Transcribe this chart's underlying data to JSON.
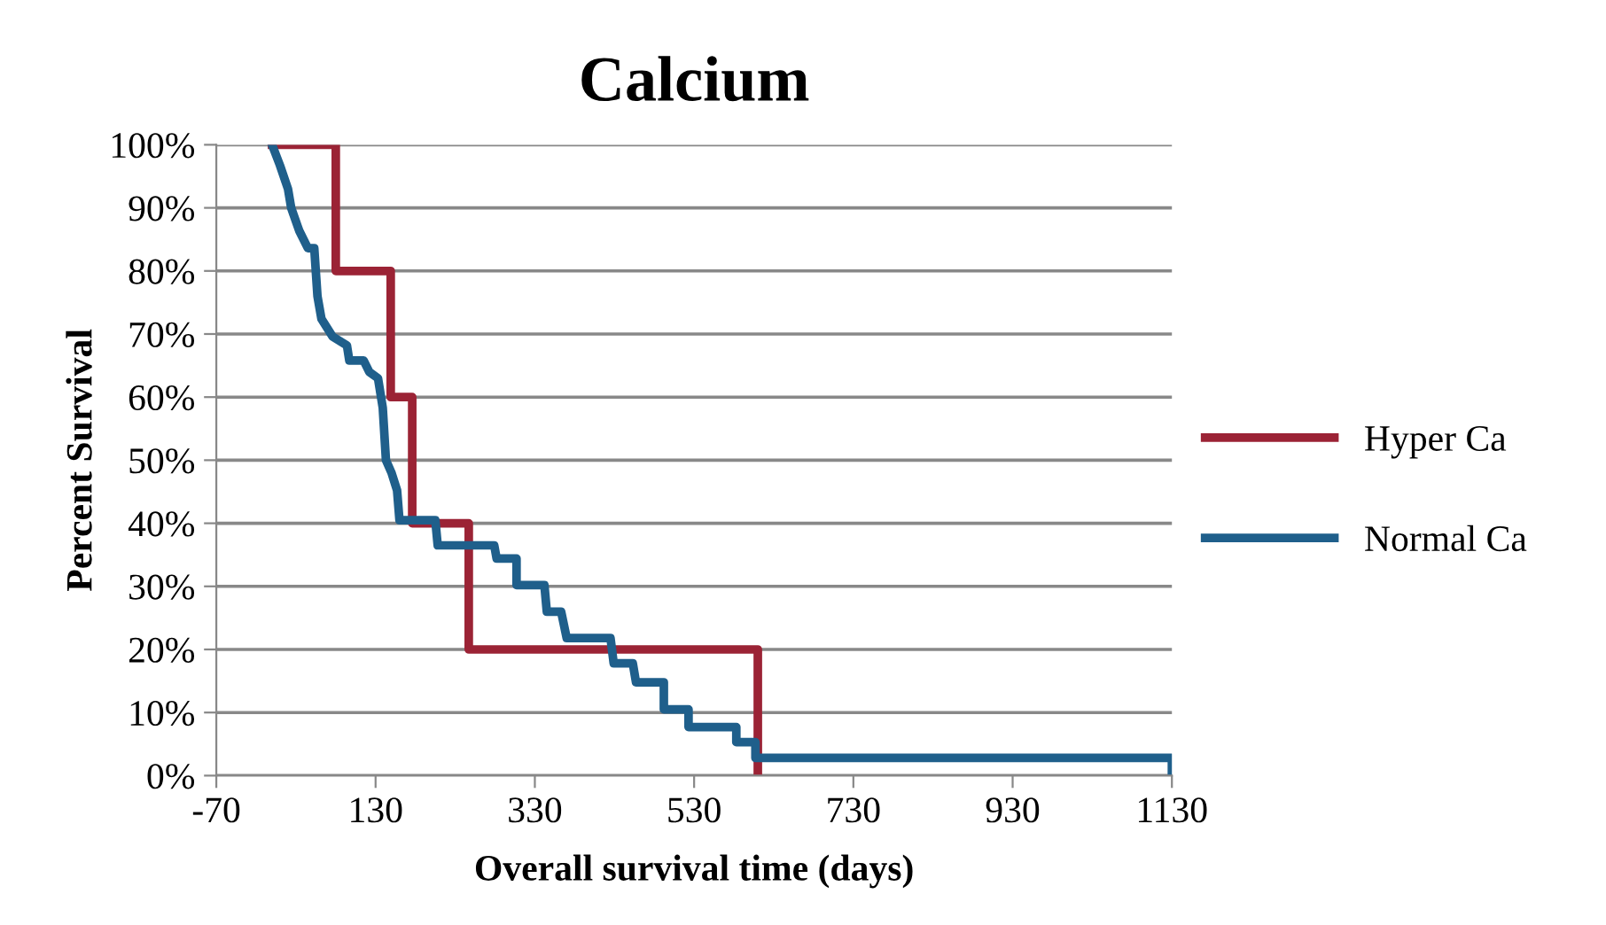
{
  "chart_data": {
    "type": "line",
    "title": "Calcium",
    "xlabel": "Overall survival time (days)",
    "ylabel": "Percent Survival",
    "xlim": [
      -70,
      1130
    ],
    "xticks": [
      -70,
      130,
      330,
      530,
      730,
      930,
      1130
    ],
    "ylim": [
      0,
      100
    ],
    "yticks": [
      {
        "value": 0,
        "label": "0%"
      },
      {
        "value": 10,
        "label": "10%"
      },
      {
        "value": 20,
        "label": "20%"
      },
      {
        "value": 30,
        "label": "30%"
      },
      {
        "value": 40,
        "label": "40%"
      },
      {
        "value": 50,
        "label": "50%"
      },
      {
        "value": 60,
        "label": "60%"
      },
      {
        "value": 70,
        "label": "70%"
      },
      {
        "value": 80,
        "label": "80%"
      },
      {
        "value": 90,
        "label": "90%"
      },
      {
        "value": 100,
        "label": "100%"
      }
    ],
    "grid": "y",
    "legend": "right",
    "marker": "none",
    "line_style": "solid",
    "series": [
      {
        "name": "Hyper Ca",
        "color": "#9b2335",
        "x": [
          0,
          80,
          80,
          149,
          149,
          176,
          176,
          247,
          247,
          610,
          610
        ],
        "values": [
          100,
          100,
          80,
          80,
          60,
          60,
          40,
          40,
          20,
          20,
          0
        ]
      },
      {
        "name": "Normal Ca",
        "color": "#1f5f8b",
        "x": [
          0,
          10,
          20,
          24,
          34,
          45,
          53,
          57,
          62,
          76,
          94,
          97,
          115,
          122,
          133,
          139,
          143,
          150,
          157,
          160,
          205,
          208,
          279,
          282,
          307,
          307,
          342,
          345,
          363,
          370,
          425,
          429,
          453,
          457,
          492,
          492,
          523,
          523,
          583,
          583,
          607,
          607,
          1130,
          1130
        ],
        "values": [
          100,
          96.7,
          93,
          90,
          86.4,
          83.6,
          83.6,
          76,
          72.4,
          69.6,
          68.2,
          65.8,
          65.8,
          64,
          63,
          58.3,
          50,
          48,
          45.2,
          40.5,
          40.5,
          36.5,
          36.5,
          34.4,
          34.4,
          30.2,
          30.2,
          26,
          26,
          21.8,
          21.8,
          17.8,
          17.8,
          14.8,
          14.8,
          10.5,
          10.5,
          7.7,
          7.7,
          5.3,
          5.3,
          2.8,
          2.8,
          0
        ]
      }
    ]
  }
}
